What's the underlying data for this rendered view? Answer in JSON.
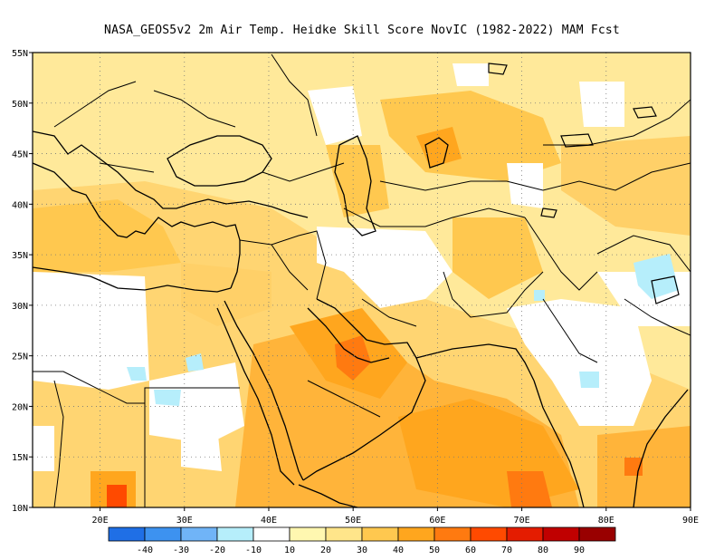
{
  "title": "NASA_GEOS5v2  2m Air Temp. Heidke Skill Score NovIC (1982-2022) MAM Fcst",
  "axes": {
    "lon_labels": [
      "20E",
      "30E",
      "40E",
      "50E",
      "60E",
      "70E",
      "80E",
      "90E"
    ],
    "lat_labels": [
      "55N",
      "50N",
      "45N",
      "40N",
      "35N",
      "30N",
      "25N",
      "20N",
      "15N",
      "10N"
    ],
    "lon_values": [
      20,
      30,
      40,
      50,
      60,
      70,
      80,
      90
    ],
    "lat_values": [
      55,
      50,
      45,
      40,
      35,
      30,
      25,
      20,
      15,
      10
    ],
    "lon_range": [
      12,
      90
    ],
    "lat_range": [
      10,
      55
    ],
    "grid": true
  },
  "colorbar": {
    "colors": [
      "#1f6fe6",
      "#3d92f0",
      "#70b4f7",
      "#b6eefb",
      "#ffffff",
      "#fff7b0",
      "#ffe58a",
      "#ffc84f",
      "#ffa61e",
      "#ff7a10",
      "#ff4a00",
      "#e41c00",
      "#c00000",
      "#990000"
    ],
    "labels": [
      "-40",
      "-30",
      "-20",
      "-10",
      "10",
      "20",
      "30",
      "40",
      "50",
      "60",
      "70",
      "80",
      "90"
    ]
  }
}
